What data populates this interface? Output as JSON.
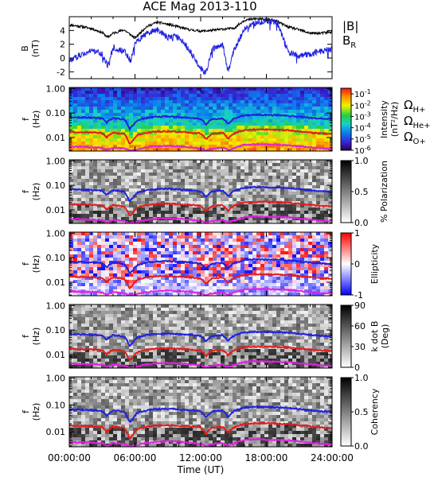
{
  "chart_data": {
    "type": "multi-panel",
    "title": "ACE Mag 2013-110",
    "x_axis": {
      "label": "Time (UT)",
      "range_hours": [
        0,
        24
      ],
      "tick_labels": [
        "00:00:00",
        "06:00:00",
        "12:00:00",
        "18:00:00",
        "24:00:00"
      ]
    },
    "panels": [
      {
        "type": "line",
        "ylabel_lines": [
          "B",
          "(nT)"
        ],
        "ylim": [
          -3,
          6
        ],
        "y_ticks": [
          "-2",
          "0",
          "2",
          "4"
        ],
        "legend": [
          {
            "label": "|B|",
            "color": "#000000"
          },
          {
            "label": "B",
            "sub": "R",
            "color": "#1f1fe0"
          }
        ],
        "series": [
          {
            "name": "|B|",
            "x": [
              0,
              1,
              2,
              3,
              3.5,
              4,
              5,
              6,
              7,
              8,
              9,
              10,
              11,
              12,
              13,
              14,
              15,
              16,
              17,
              18,
              19,
              20,
              21,
              22,
              23,
              24
            ],
            "y": [
              4.8,
              4.6,
              4.3,
              3.7,
              3.0,
              3.6,
              4.1,
              2.9,
              4.5,
              5.2,
              4.9,
              4.5,
              4.1,
              3.9,
              4.0,
              4.2,
              4.3,
              5.5,
              5.7,
              5.6,
              5.3,
              4.5,
              4.1,
              3.6,
              3.6,
              3.8
            ]
          },
          {
            "name": "B_R",
            "x": [
              0,
              1,
              2,
              3,
              3.5,
              4,
              5,
              5.6,
              6,
              7,
              8,
              9,
              10,
              11,
              12,
              12.5,
              13,
              14,
              14.5,
              15,
              16,
              17,
              18,
              19,
              19.5,
              20,
              21,
              22,
              23,
              24
            ],
            "y": [
              -0.5,
              0.5,
              1.0,
              0.6,
              -1.2,
              1.5,
              1.0,
              -0.4,
              2.2,
              3.5,
              4.1,
              3.0,
              3.2,
              1.1,
              -1.5,
              -2.2,
              1.2,
              2.1,
              -2.0,
              1.0,
              4.3,
              5.1,
              5.4,
              5.2,
              3.0,
              0.8,
              0.2,
              0.6,
              1.0,
              1.3
            ]
          }
        ]
      },
      {
        "type": "heatmap",
        "ylabel_lines": [
          "f",
          "(Hz)"
        ],
        "y_ticks": [
          "1.00",
          "0.10",
          "0.01"
        ],
        "ylim_log": [
          0.0028,
          1.1
        ],
        "colorbar": {
          "label_lines": [
            "Intensity",
            "(nT²/Hz)"
          ],
          "range_log": [
            -6,
            -0.5
          ],
          "ticks": [
            {
              "base": "10",
              "exp": "-1"
            },
            {
              "base": "10",
              "exp": "-2"
            },
            {
              "base": "10",
              "exp": "-3"
            },
            {
              "base": "10",
              "exp": "-4"
            },
            {
              "base": "10",
              "exp": "-5"
            },
            {
              "base": "10",
              "exp": "-6"
            }
          ]
        },
        "legend": [
          {
            "label": "Ω",
            "sub": "H+",
            "color": "#2020e0"
          },
          {
            "label": "Ω",
            "sub": "He+",
            "color": "#e01c1c"
          },
          {
            "label": "Ω",
            "sub": "O+",
            "color": "#e020e0"
          }
        ]
      },
      {
        "type": "heatmap",
        "ylabel_lines": [
          "f",
          "(Hz)"
        ],
        "y_ticks": [
          "1.00",
          "0.10",
          "0.01"
        ],
        "colorbar": {
          "label_lines": [
            "% Polarization"
          ],
          "ticks": [
            "1.0",
            "0.5",
            "0.0"
          ]
        }
      },
      {
        "type": "heatmap",
        "ylabel_lines": [
          "f",
          "(Hz)"
        ],
        "y_ticks": [
          "1.00",
          "0.10",
          "0.01"
        ],
        "colorbar": {
          "label_lines": [
            "Ellipticity"
          ],
          "ticks": [
            "1",
            "0",
            "-1"
          ]
        }
      },
      {
        "type": "heatmap",
        "ylabel_lines": [
          "f",
          "(Hz)"
        ],
        "y_ticks": [
          "1.00",
          "0.10",
          "0.01"
        ],
        "colorbar": {
          "label_lines": [
            "k dot B",
            "(Deg)"
          ],
          "ticks": [
            "90",
            "60",
            "30",
            "0"
          ]
        }
      },
      {
        "type": "heatmap",
        "ylabel_lines": [
          "f",
          "(Hz)"
        ],
        "y_ticks": [
          "1.00",
          "0.10",
          "0.01"
        ],
        "colorbar": {
          "label_lines": [
            "Coherency"
          ],
          "ticks": [
            "1.0",
            "0.5",
            "0.0"
          ]
        }
      }
    ],
    "gyrofrequency_lines": [
      {
        "name": "H+",
        "color": "#2020e0",
        "x": [
          0,
          1,
          2,
          3,
          3.4,
          3.7,
          4,
          5,
          5.5,
          5.8,
          6.2,
          7,
          8,
          9,
          10,
          11,
          12,
          12.5,
          13,
          14,
          14.5,
          15,
          16,
          17,
          18,
          19,
          20,
          21,
          22,
          23,
          24
        ],
        "y": [
          0.068,
          0.066,
          0.064,
          0.06,
          0.04,
          0.052,
          0.062,
          0.055,
          0.022,
          0.03,
          0.05,
          0.062,
          0.07,
          0.072,
          0.068,
          0.063,
          0.057,
          0.034,
          0.056,
          0.062,
          0.035,
          0.058,
          0.08,
          0.085,
          0.083,
          0.082,
          0.078,
          0.07,
          0.063,
          0.058,
          0.056
        ]
      },
      {
        "name": "He+",
        "color": "#e01c1c",
        "x": [
          0,
          1,
          2,
          3,
          3.4,
          3.7,
          4,
          5,
          5.5,
          5.8,
          6.2,
          7,
          8,
          9,
          10,
          11,
          12,
          12.5,
          13,
          14,
          14.5,
          15,
          16,
          17,
          18,
          19,
          20,
          21,
          22,
          23,
          24
        ],
        "y": [
          0.017,
          0.0165,
          0.016,
          0.015,
          0.01,
          0.013,
          0.0155,
          0.014,
          0.0055,
          0.0075,
          0.0125,
          0.0155,
          0.0175,
          0.018,
          0.017,
          0.016,
          0.0145,
          0.0085,
          0.014,
          0.0155,
          0.009,
          0.0145,
          0.02,
          0.021,
          0.021,
          0.0205,
          0.0195,
          0.0175,
          0.016,
          0.0145,
          0.014
        ]
      },
      {
        "name": "O+",
        "color": "#e020e0",
        "x": [
          0,
          1,
          2,
          3,
          3.4,
          3.7,
          4,
          5,
          5.5,
          5.8,
          6.2,
          7,
          8,
          9,
          10,
          11,
          12,
          12.5,
          13,
          14,
          14.5,
          15,
          16,
          17,
          18,
          19,
          20,
          21,
          22,
          23,
          24
        ],
        "y": [
          0.0043,
          0.0041,
          0.004,
          0.0038,
          0.0031,
          0.0034,
          0.0039,
          0.0035,
          0.0029,
          0.003,
          0.0032,
          0.0039,
          0.0044,
          0.0045,
          0.0043,
          0.004,
          0.0036,
          0.003,
          0.0035,
          0.0039,
          0.0031,
          0.0036,
          0.005,
          0.0053,
          0.0052,
          0.0051,
          0.0049,
          0.0044,
          0.004,
          0.0036,
          0.0035
        ]
      }
    ]
  }
}
